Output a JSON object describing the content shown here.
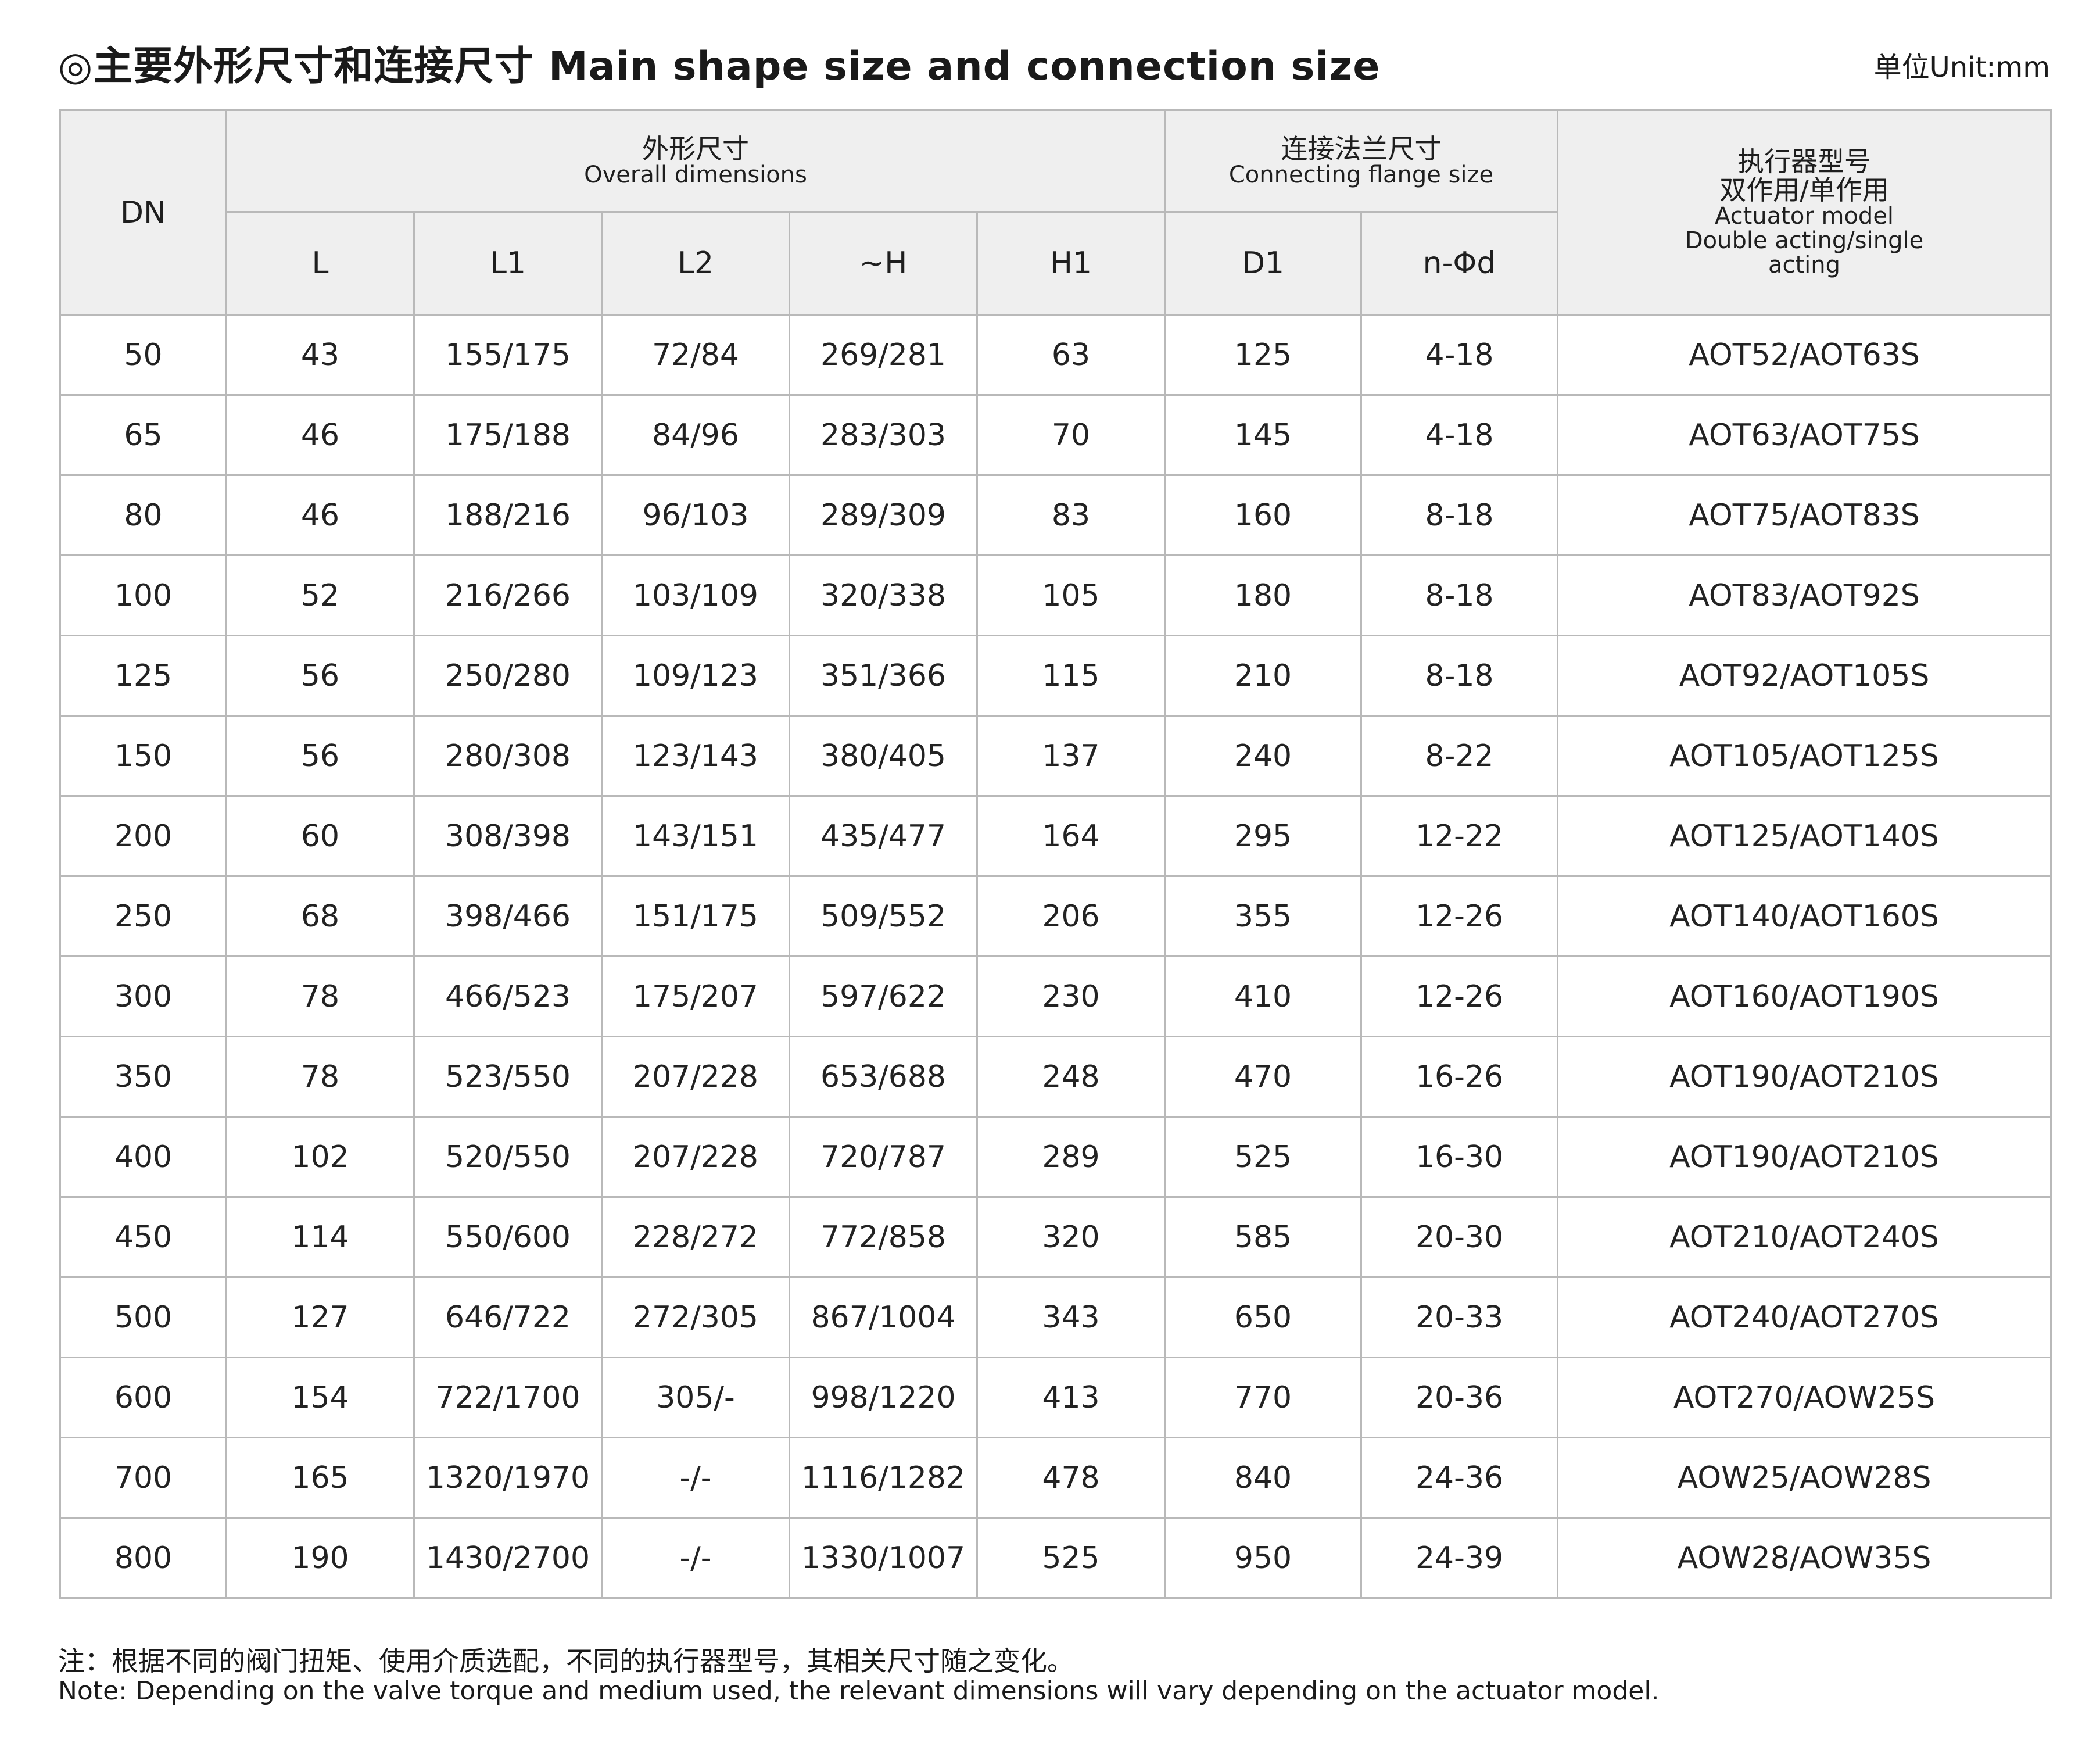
{
  "title": "◎主要外形尺寸和连接尺寸 Main shape size and connection size",
  "unit": "单位Unit:mm",
  "header": {
    "dn": "DN",
    "overall_cn": "外形尺寸",
    "overall_en": "Overall dimensions",
    "flange_cn": "连接法兰尺寸",
    "flange_en": "Connecting flange size",
    "actuator_cn_1": "执行器型号",
    "actuator_cn_2": "双作用/单作用",
    "actuator_en_1": "Actuator model",
    "actuator_en_2": "Double acting/single",
    "actuator_en_3": "acting",
    "col_L": "L",
    "col_L1": "L1",
    "col_L2": "L2",
    "col_H": "~H",
    "col_H1": "H1",
    "col_D1": "D1",
    "col_nd": "n-Φd"
  },
  "rows": [
    [
      "50",
      "43",
      "155/175",
      "72/84",
      "269/281",
      "63",
      "125",
      "4-18",
      "AOT52/AOT63S"
    ],
    [
      "65",
      "46",
      "175/188",
      "84/96",
      "283/303",
      "70",
      "145",
      "4-18",
      "AOT63/AOT75S"
    ],
    [
      "80",
      "46",
      "188/216",
      "96/103",
      "289/309",
      "83",
      "160",
      "8-18",
      "AOT75/AOT83S"
    ],
    [
      "100",
      "52",
      "216/266",
      "103/109",
      "320/338",
      "105",
      "180",
      "8-18",
      "AOT83/AOT92S"
    ],
    [
      "125",
      "56",
      "250/280",
      "109/123",
      "351/366",
      "115",
      "210",
      "8-18",
      "AOT92/AOT105S"
    ],
    [
      "150",
      "56",
      "280/308",
      "123/143",
      "380/405",
      "137",
      "240",
      "8-22",
      "AOT105/AOT125S"
    ],
    [
      "200",
      "60",
      "308/398",
      "143/151",
      "435/477",
      "164",
      "295",
      "12-22",
      "AOT125/AOT140S"
    ],
    [
      "250",
      "68",
      "398/466",
      "151/175",
      "509/552",
      "206",
      "355",
      "12-26",
      "AOT140/AOT160S"
    ],
    [
      "300",
      "78",
      "466/523",
      "175/207",
      "597/622",
      "230",
      "410",
      "12-26",
      "AOT160/AOT190S"
    ],
    [
      "350",
      "78",
      "523/550",
      "207/228",
      "653/688",
      "248",
      "470",
      "16-26",
      "AOT190/AOT210S"
    ],
    [
      "400",
      "102",
      "520/550",
      "207/228",
      "720/787",
      "289",
      "525",
      "16-30",
      "AOT190/AOT210S"
    ],
    [
      "450",
      "114",
      "550/600",
      "228/272",
      "772/858",
      "320",
      "585",
      "20-30",
      "AOT210/AOT240S"
    ],
    [
      "500",
      "127",
      "646/722",
      "272/305",
      "867/1004",
      "343",
      "650",
      "20-33",
      "AOT240/AOT270S"
    ],
    [
      "600",
      "154",
      "722/1700",
      "305/-",
      "998/1220",
      "413",
      "770",
      "20-36",
      "AOT270/AOW25S"
    ],
    [
      "700",
      "165",
      "1320/1970",
      "-/-",
      "1116/1282",
      "478",
      "840",
      "24-36",
      "AOW25/AOW28S"
    ],
    [
      "800",
      "190",
      "1430/2700",
      "-/-",
      "1330/1007",
      "525",
      "950",
      "24-39",
      "AOW28/AOW35S"
    ]
  ],
  "note_cn": "注：根据不同的阀门扭矩、使用介质选配，不同的执行器型号，其相关尺寸随之变化。",
  "note_en": "Note: Depending on the valve torque and medium used, the relevant dimensions will vary depending on the actuator model."
}
